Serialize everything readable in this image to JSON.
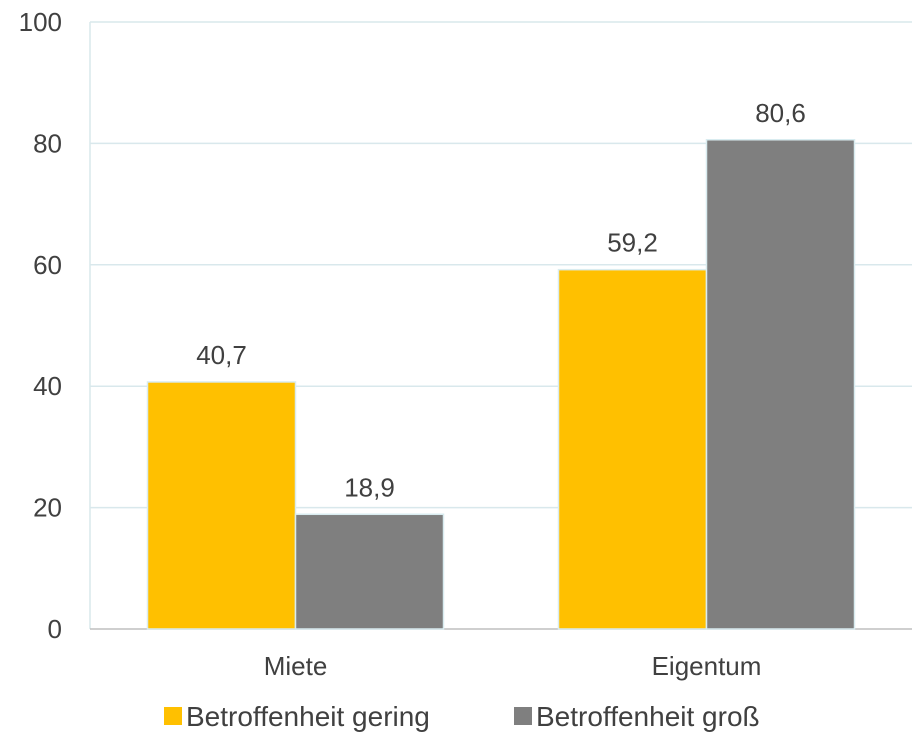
{
  "chart_data": {
    "type": "bar",
    "categories": [
      "Miete",
      "Eigentum"
    ],
    "series": [
      {
        "name": "Betroffenheit gering",
        "values": [
          40.7,
          59.2
        ],
        "labels": [
          "40,7",
          "59,2"
        ],
        "color": "#FFC000"
      },
      {
        "name": "Betroffenheit groß",
        "values": [
          18.9,
          80.6
        ],
        "labels": [
          "18,9",
          "80,6"
        ],
        "color": "#7F7F7F"
      }
    ],
    "ylim": [
      0,
      100
    ],
    "yticks": [
      0,
      20,
      40,
      60,
      80,
      100
    ],
    "grid": true,
    "legend": "bottom",
    "title": "",
    "xlabel": "",
    "ylabel": ""
  }
}
